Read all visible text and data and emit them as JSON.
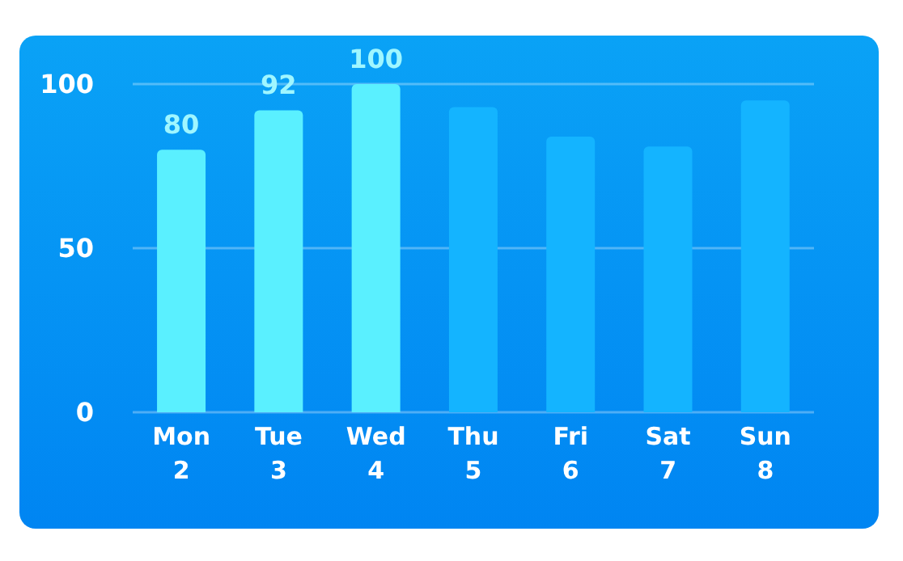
{
  "chart_data": {
    "type": "bar",
    "categories": [
      "Mon\n2",
      "Tue\n3",
      "Wed\n4",
      "Thu\n5",
      "Fri\n6",
      "Sat\n7",
      "Sun\n8"
    ],
    "values": [
      80,
      92,
      100,
      93,
      84,
      81,
      95
    ],
    "colors": [
      "#5af0ff",
      "#5af0ff",
      "#5af0ff",
      "#14b4ff",
      "#14b4ff",
      "#14b4ff",
      "#14b4ff"
    ],
    "value_labels": [
      "80",
      "92",
      "100",
      null,
      null,
      null,
      null
    ],
    "ylim": [
      0,
      100
    ],
    "yticks": [
      0,
      50,
      100
    ],
    "grid": "y"
  }
}
